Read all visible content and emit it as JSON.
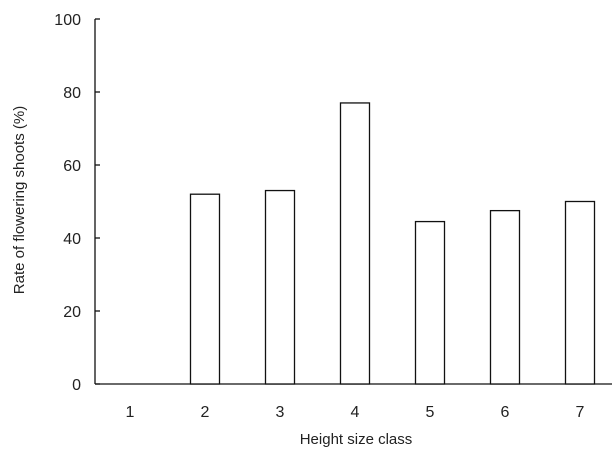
{
  "chart_data": {
    "type": "bar",
    "title": "",
    "xlabel": "Height size class",
    "ylabel": "Rate of flowering shoots (%)",
    "categories": [
      "1",
      "2",
      "3",
      "4",
      "5",
      "6",
      "7"
    ],
    "values": [
      0,
      52,
      53,
      77,
      44.5,
      47.5,
      50
    ],
    "ylim": [
      0,
      100
    ],
    "yticks": [
      "0",
      "20",
      "40",
      "60",
      "80",
      "100"
    ],
    "grid": false,
    "legend": "none"
  }
}
